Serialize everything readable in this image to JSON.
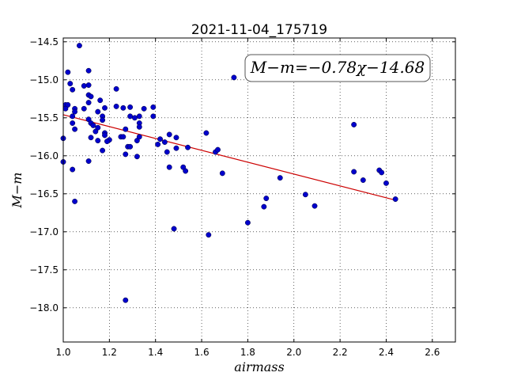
{
  "chart_data": {
    "type": "scatter",
    "title": "2021-11-04_175719",
    "xlabel": "airmass",
    "ylabel": "M−m",
    "xlim": [
      1.0,
      2.7
    ],
    "ylim": [
      -18.45,
      -14.45
    ],
    "y_inverted": true,
    "grid": true,
    "x_ticks": [
      "1.0",
      "1.2",
      "1.4",
      "1.6",
      "1.8",
      "2.0",
      "2.2",
      "2.4",
      "2.6"
    ],
    "y_ticks": [
      "−14.5",
      "−15.0",
      "−15.5",
      "−16.0",
      "−16.5",
      "−17.0",
      "−17.5",
      "−18.0"
    ],
    "y_tick_values": [
      -14.5,
      -15.0,
      -15.5,
      -16.0,
      -16.5,
      -17.0,
      -17.5,
      -18.0
    ],
    "x_tick_values": [
      1.0,
      1.2,
      1.4,
      1.6,
      1.8,
      2.0,
      2.2,
      2.4,
      2.6
    ],
    "annotation": "M−m=−0.78χ−14.68",
    "fit": {
      "slope": -0.78,
      "intercept": -14.68,
      "x_range": [
        1.0,
        2.44
      ],
      "color": "#cc0000"
    },
    "marker_color": "#0000cc",
    "points": [
      [
        1.07,
        -14.55
      ],
      [
        1.02,
        -14.9
      ],
      [
        1.03,
        -15.05
      ],
      [
        1.04,
        -15.13
      ],
      [
        1.09,
        -15.08
      ],
      [
        1.11,
        -14.88
      ],
      [
        1.11,
        -15.07
      ],
      [
        1.11,
        -15.2
      ],
      [
        1.12,
        -15.22
      ],
      [
        1.01,
        -15.33
      ],
      [
        1.02,
        -15.33
      ],
      [
        1.01,
        -15.38
      ],
      [
        1.05,
        -15.38
      ],
      [
        1.05,
        -15.42
      ],
      [
        1.04,
        -15.48
      ],
      [
        1.04,
        -15.57
      ],
      [
        1.05,
        -15.65
      ],
      [
        1.0,
        -15.77
      ],
      [
        1.0,
        -16.08
      ],
      [
        1.04,
        -16.18
      ],
      [
        1.05,
        -16.6
      ],
      [
        1.09,
        -15.38
      ],
      [
        1.11,
        -15.3
      ],
      [
        1.11,
        -15.52
      ],
      [
        1.12,
        -15.57
      ],
      [
        1.13,
        -15.6
      ],
      [
        1.15,
        -15.42
      ],
      [
        1.15,
        -15.63
      ],
      [
        1.14,
        -15.68
      ],
      [
        1.12,
        -15.76
      ],
      [
        1.15,
        -15.8
      ],
      [
        1.16,
        -15.27
      ],
      [
        1.18,
        -15.37
      ],
      [
        1.17,
        -15.48
      ],
      [
        1.17,
        -15.53
      ],
      [
        1.18,
        -15.7
      ],
      [
        1.18,
        -15.73
      ],
      [
        1.2,
        -15.79
      ],
      [
        1.19,
        -15.81
      ],
      [
        1.17,
        -15.93
      ],
      [
        1.11,
        -16.07
      ],
      [
        1.23,
        -15.12
      ],
      [
        1.23,
        -15.35
      ],
      [
        1.26,
        -15.37
      ],
      [
        1.29,
        -15.36
      ],
      [
        1.29,
        -15.48
      ],
      [
        1.31,
        -15.5
      ],
      [
        1.33,
        -15.48
      ],
      [
        1.35,
        -15.38
      ],
      [
        1.39,
        -15.36
      ],
      [
        1.39,
        -15.48
      ],
      [
        1.33,
        -15.57
      ],
      [
        1.33,
        -15.62
      ],
      [
        1.27,
        -15.65
      ],
      [
        1.25,
        -15.75
      ],
      [
        1.26,
        -15.75
      ],
      [
        1.32,
        -15.8
      ],
      [
        1.33,
        -15.75
      ],
      [
        1.28,
        -15.88
      ],
      [
        1.29,
        -15.88
      ],
      [
        1.27,
        -15.98
      ],
      [
        1.32,
        -16.01
      ],
      [
        1.41,
        -15.85
      ],
      [
        1.42,
        -15.78
      ],
      [
        1.44,
        -15.82
      ],
      [
        1.46,
        -15.72
      ],
      [
        1.45,
        -15.95
      ],
      [
        1.49,
        -15.76
      ],
      [
        1.49,
        -15.9
      ],
      [
        1.46,
        -16.15
      ],
      [
        1.52,
        -16.15
      ],
      [
        1.53,
        -16.2
      ],
      [
        1.54,
        -15.89
      ],
      [
        1.48,
        -16.96
      ],
      [
        1.27,
        -17.9
      ],
      [
        1.62,
        -15.7
      ],
      [
        1.66,
        -15.95
      ],
      [
        1.67,
        -15.92
      ],
      [
        1.69,
        -16.23
      ],
      [
        1.63,
        -17.04
      ],
      [
        1.74,
        -14.97
      ],
      [
        1.8,
        -16.88
      ],
      [
        1.87,
        -16.67
      ],
      [
        1.88,
        -16.56
      ],
      [
        1.94,
        -16.29
      ],
      [
        2.05,
        -16.51
      ],
      [
        2.09,
        -16.66
      ],
      [
        2.26,
        -15.59
      ],
      [
        2.26,
        -16.21
      ],
      [
        2.3,
        -16.32
      ],
      [
        2.37,
        -16.19
      ],
      [
        2.38,
        -16.22
      ],
      [
        2.4,
        -16.36
      ],
      [
        2.44,
        -16.57
      ]
    ]
  }
}
